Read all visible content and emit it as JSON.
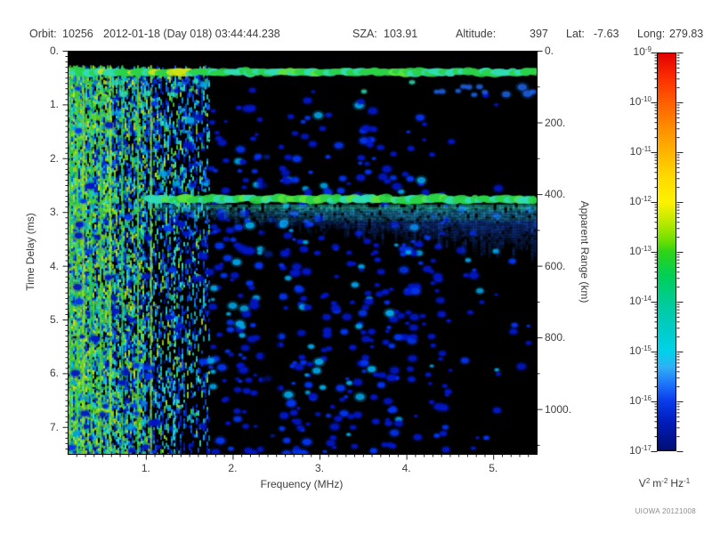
{
  "header": {
    "orbit_label": "Orbit:",
    "orbit_value": "10256",
    "datetime": "2012-01-18 (Day 018) 03:44:44.238",
    "sza_label": "SZA:",
    "sza_value": "103.91",
    "altitude_label": "Altitude:",
    "altitude_value": "397",
    "lat_label": "Lat:",
    "lat_value": "-7.63",
    "long_label": "Long:",
    "long_value": "279.83"
  },
  "footer": {
    "credit": "UIOWA 20121008"
  },
  "chart_data": {
    "type": "heatmap",
    "title": "",
    "xlabel": "Frequency (MHz)",
    "ylabel_left": "Time Delay (ms)",
    "ylabel_right": "Apparent Range (km)",
    "x_range_mhz": [
      0.1,
      5.5
    ],
    "y_range_ms": [
      0,
      7.5
    ],
    "right_axis_range_km": [
      0,
      1125
    ],
    "x_major_ticks": [
      1,
      2,
      3,
      4,
      5
    ],
    "x_minor_step_mhz": 0.1,
    "y_major_ticks_ms": [
      0,
      1,
      2,
      3,
      4,
      5,
      6,
      7
    ],
    "y_minor_step_ms": 0.1,
    "right_major_ticks_km": [
      0,
      200,
      400,
      600,
      800,
      1000
    ],
    "right_minor_step_km": 100,
    "tick_suffix": ".",
    "grid": false,
    "colorbar": {
      "scale": "log10",
      "max": "1e-9",
      "min": "1e-17",
      "tick_exponents": [
        -9,
        -10,
        -11,
        -12,
        -13,
        -14,
        -15,
        -16,
        -17
      ],
      "units_parts": [
        [
          "V",
          "2"
        ],
        [
          "m",
          "-2"
        ],
        [
          "Hz",
          "-1"
        ]
      ],
      "gradient": [
        [
          "#e10000",
          0
        ],
        [
          "#fb2d00",
          6
        ],
        [
          "#ff5f00",
          12.5
        ],
        [
          "#ff8f00",
          19
        ],
        [
          "#ffb400",
          25
        ],
        [
          "#ffd900",
          31
        ],
        [
          "#fdf200",
          37.5
        ],
        [
          "#c3ea00",
          42
        ],
        [
          "#71e000",
          47
        ],
        [
          "#2ed417",
          50
        ],
        [
          "#00cf56",
          56
        ],
        [
          "#00cc96",
          62.5
        ],
        [
          "#00ccc4",
          69
        ],
        [
          "#00d2e8",
          75
        ],
        [
          "#2fb0f4",
          79
        ],
        [
          "#1f78fa",
          83
        ],
        [
          "#0a3cec",
          87.5
        ],
        [
          "#001cb8",
          93
        ],
        [
          "#000e73",
          100
        ]
      ]
    },
    "features": [
      {
        "name": "ionosphere-echo-band",
        "time_delay_ms": [
          0.27,
          0.52
        ],
        "freq_mhz": [
          0.1,
          5.5
        ],
        "level": "~1e-12 (green), yellow patches below 1.7 MHz, cyan toward 5.5 MHz"
      },
      {
        "name": "surface-echo-band",
        "time_delay_ms": [
          2.62,
          2.9
        ],
        "freq_mhz": [
          1.1,
          5.5
        ],
        "apparent_range_km": 400,
        "level": "~1e-12 (green) with diffuse cyan/blue tail widening to higher frequency"
      },
      {
        "name": "low-frequency-plasma-noise",
        "freq_mhz": [
          0.1,
          1.72
        ],
        "time_delay_ms": [
          0.27,
          7.5
        ],
        "level": "dense vertical green/cyan/blue streaks"
      },
      {
        "name": "harmonic-line",
        "freq_mhz": 1.32,
        "time_delay_ms": [
          2.66,
          7.5
        ],
        "level": "dashed cyan vertical line"
      },
      {
        "name": "data-gap-column",
        "freq_mhz": [
          2.34,
          2.54
        ],
        "level": "black"
      },
      {
        "name": "background-speckle",
        "level": "~1e-16 scattered blue blobs, sparser above 4.5 MHz"
      },
      {
        "name": "top-black-strip",
        "time_delay_ms": [
          0,
          0.26
        ],
        "level": "black"
      }
    ],
    "render": {
      "seed": 20121008,
      "background": "#000000",
      "palette": {
        "greens": [
          "#2fd24a",
          "#4fd42a",
          "#8fe01e",
          "#bfe414"
        ],
        "cyans": [
          "#19c8dc",
          "#00a8e8",
          "#35e0c0"
        ],
        "blues": [
          "#0030e8",
          "#0018c0",
          "#1560f0"
        ],
        "speckle": [
          "#0017c4",
          "#0134ee",
          "#00a2e2"
        ],
        "band_green": "#2bd248",
        "band_green_light": "#5ce23c",
        "band_cyan": "#30dcb4",
        "band_yellow": "#cde414",
        "diffuse": [
          "#2fd8c8",
          "#28a8e8",
          "#1b5cf0"
        ],
        "plasma_line": "#3ae4cc",
        "under_band_blue": "#1e64e8"
      },
      "bright_lines_mhz": [
        0.12,
        0.2,
        0.27,
        0.36,
        0.47,
        0.58,
        0.72,
        0.9,
        1.05
      ],
      "dashed_line_mhz": 1.32,
      "gap_mhz": [
        2.34,
        2.54
      ],
      "speckle_count": 1700
    }
  }
}
